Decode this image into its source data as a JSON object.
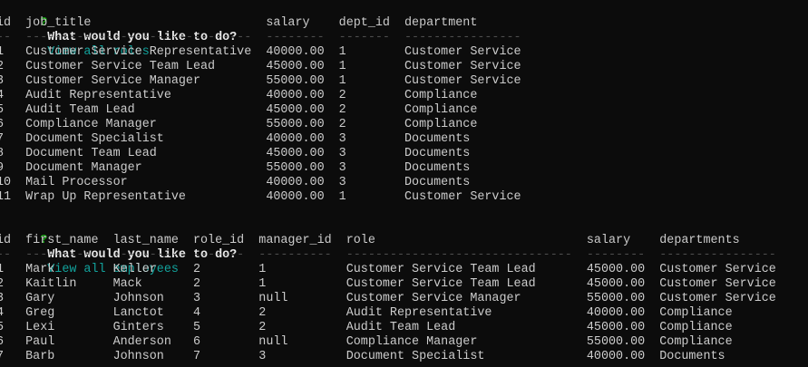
{
  "terminal": {
    "background": "#0c0c0c",
    "foreground": "#cccccc",
    "prompt_symbol_color": "#13a10e",
    "answer_color": "#12a39d",
    "separator_color": "#4d4d4d"
  },
  "prompts": [
    {
      "symbol": "?",
      "message": "What would you like to do?",
      "answer": "View all roles"
    },
    {
      "symbol": "?",
      "message": "What would you like to do?",
      "answer": "View all employees"
    }
  ],
  "tables": [
    {
      "name": "roles",
      "columns": [
        {
          "label": "id",
          "width": 2
        },
        {
          "label": "job_title",
          "width": 31
        },
        {
          "label": "salary",
          "width": 8
        },
        {
          "label": "dept_id",
          "width": 7
        },
        {
          "label": "department",
          "width": 16
        }
      ],
      "rows": [
        [
          "1",
          "Customer Service Representative",
          "40000.00",
          "1",
          "Customer Service"
        ],
        [
          "2",
          "Customer Service Team Lead",
          "45000.00",
          "1",
          "Customer Service"
        ],
        [
          "3",
          "Customer Service Manager",
          "55000.00",
          "1",
          "Customer Service"
        ],
        [
          "4",
          "Audit Representative",
          "40000.00",
          "2",
          "Compliance"
        ],
        [
          "5",
          "Audit Team Lead",
          "45000.00",
          "2",
          "Compliance"
        ],
        [
          "6",
          "Compliance Manager",
          "55000.00",
          "2",
          "Compliance"
        ],
        [
          "7",
          "Document Specialist",
          "40000.00",
          "3",
          "Documents"
        ],
        [
          "8",
          "Document Team Lead",
          "45000.00",
          "3",
          "Documents"
        ],
        [
          "9",
          "Document Manager",
          "55000.00",
          "3",
          "Documents"
        ],
        [
          "10",
          "Mail Processor",
          "40000.00",
          "3",
          "Documents"
        ],
        [
          "11",
          "Wrap Up Representative",
          "40000.00",
          "1",
          "Customer Service"
        ]
      ]
    },
    {
      "name": "employees",
      "columns": [
        {
          "label": "id",
          "width": 2
        },
        {
          "label": "first_name",
          "width": 10
        },
        {
          "label": "last_name",
          "width": 9
        },
        {
          "label": "role_id",
          "width": 7
        },
        {
          "label": "manager_id",
          "width": 10
        },
        {
          "label": "role",
          "width": 31
        },
        {
          "label": "salary",
          "width": 8
        },
        {
          "label": "departments",
          "width": 16
        }
      ],
      "rows": [
        [
          "1",
          "Mark",
          "Keller",
          "2",
          "1",
          "Customer Service Team Lead",
          "45000.00",
          "Customer Service"
        ],
        [
          "2",
          "Kaitlin",
          "Mack",
          "2",
          "1",
          "Customer Service Team Lead",
          "45000.00",
          "Customer Service"
        ],
        [
          "3",
          "Gary",
          "Johnson",
          "3",
          "null",
          "Customer Service Manager",
          "55000.00",
          "Customer Service"
        ],
        [
          "4",
          "Greg",
          "Lanctot",
          "4",
          "2",
          "Audit Representative",
          "40000.00",
          "Compliance"
        ],
        [
          "5",
          "Lexi",
          "Ginters",
          "5",
          "2",
          "Audit Team Lead",
          "45000.00",
          "Compliance"
        ],
        [
          "6",
          "Paul",
          "Anderson",
          "6",
          "null",
          "Compliance Manager",
          "55000.00",
          "Compliance"
        ],
        [
          "7",
          "Barb",
          "Johnson",
          "7",
          "3",
          "Document Specialist",
          "40000.00",
          "Documents"
        ]
      ]
    }
  ]
}
